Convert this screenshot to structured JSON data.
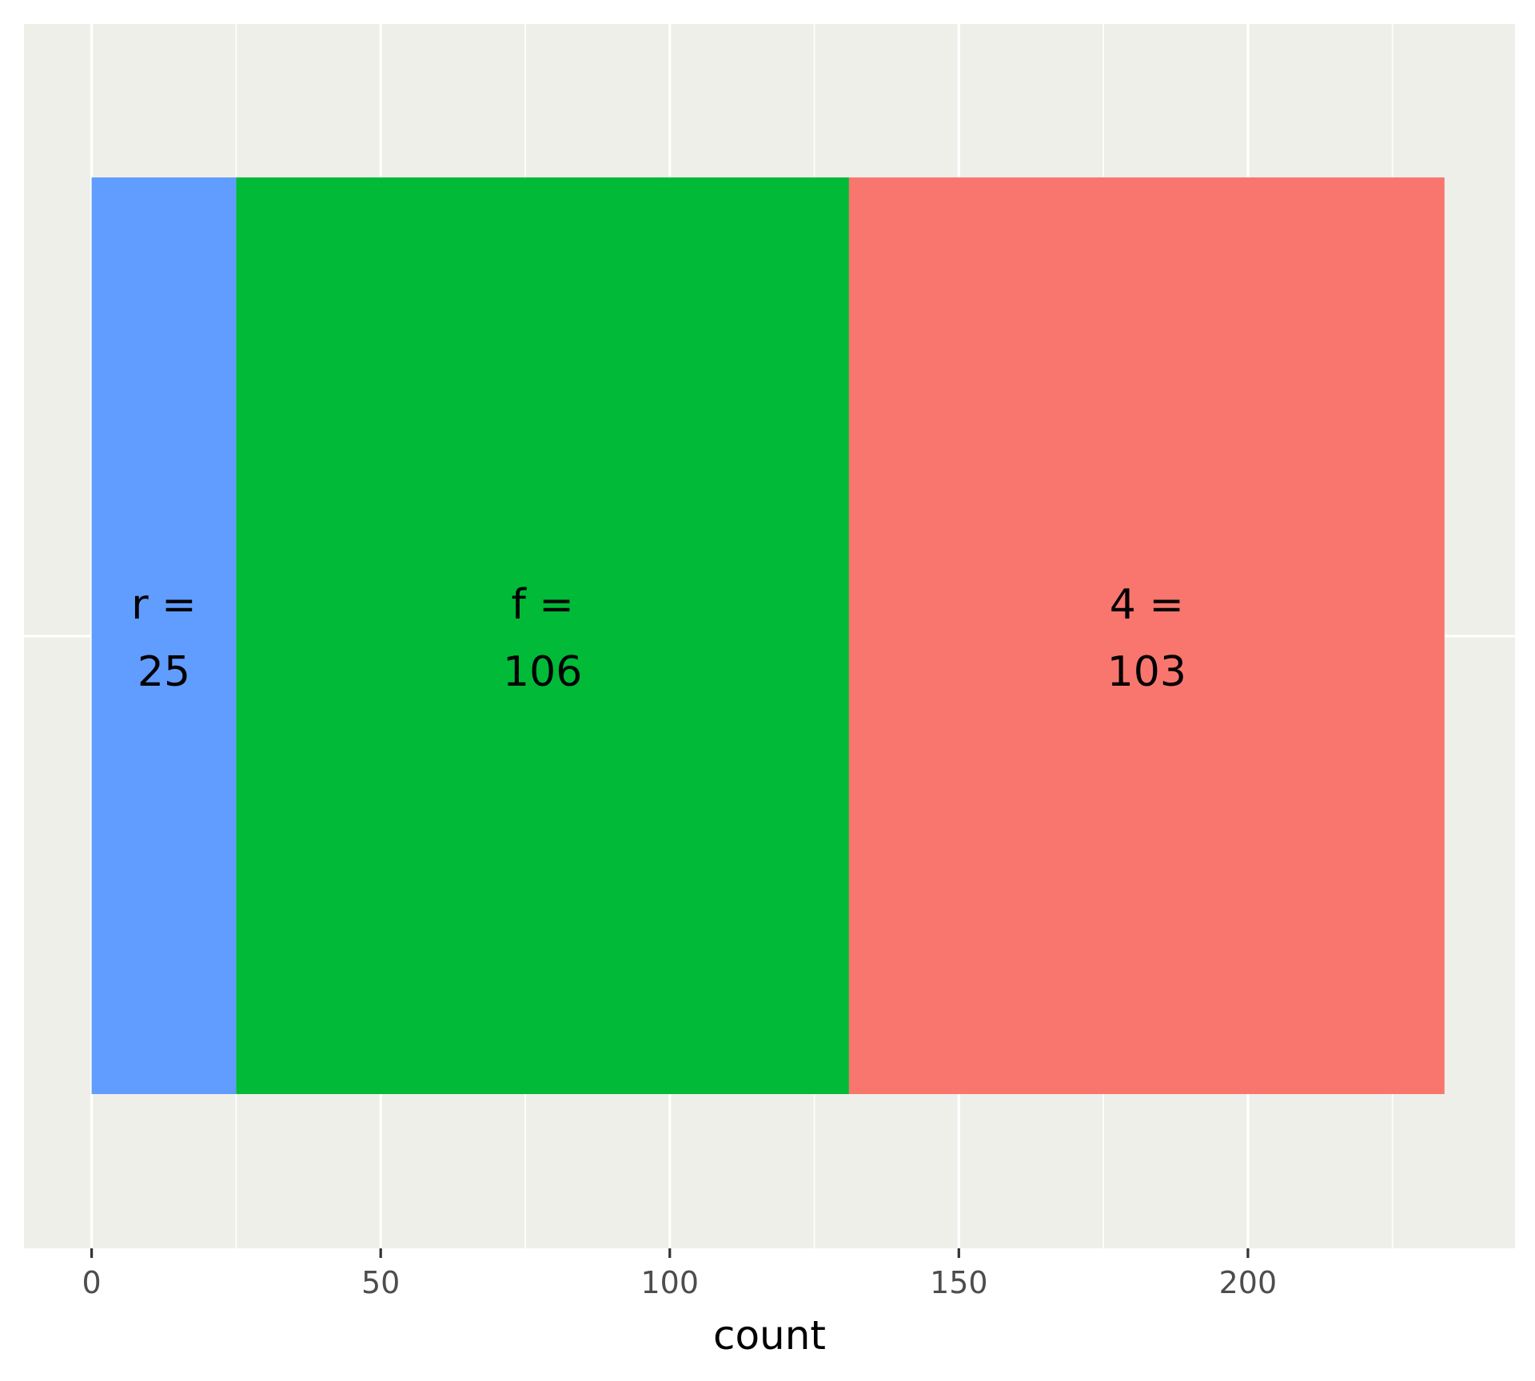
{
  "chart_data": {
    "type": "bar",
    "orientation": "horizontal",
    "stacked": true,
    "xlabel": "count",
    "ylabel": "",
    "xlim": [
      -11.7,
      246.2
    ],
    "x_ticks": [
      0,
      50,
      100,
      150,
      200
    ],
    "grid": true,
    "panel_background": "#efefe9",
    "grid_color": "#ffffff",
    "segments": [
      {
        "key": "r",
        "value": 25,
        "color": "#619cff",
        "label_line1": "r =",
        "label_line2": "25"
      },
      {
        "key": "f",
        "value": 106,
        "color": "#00ba38",
        "label_line1": "f =",
        "label_line2": "106"
      },
      {
        "key": "4",
        "value": 103,
        "color": "#f8766d",
        "label_line1": "4 =",
        "label_line2": "103"
      }
    ]
  }
}
